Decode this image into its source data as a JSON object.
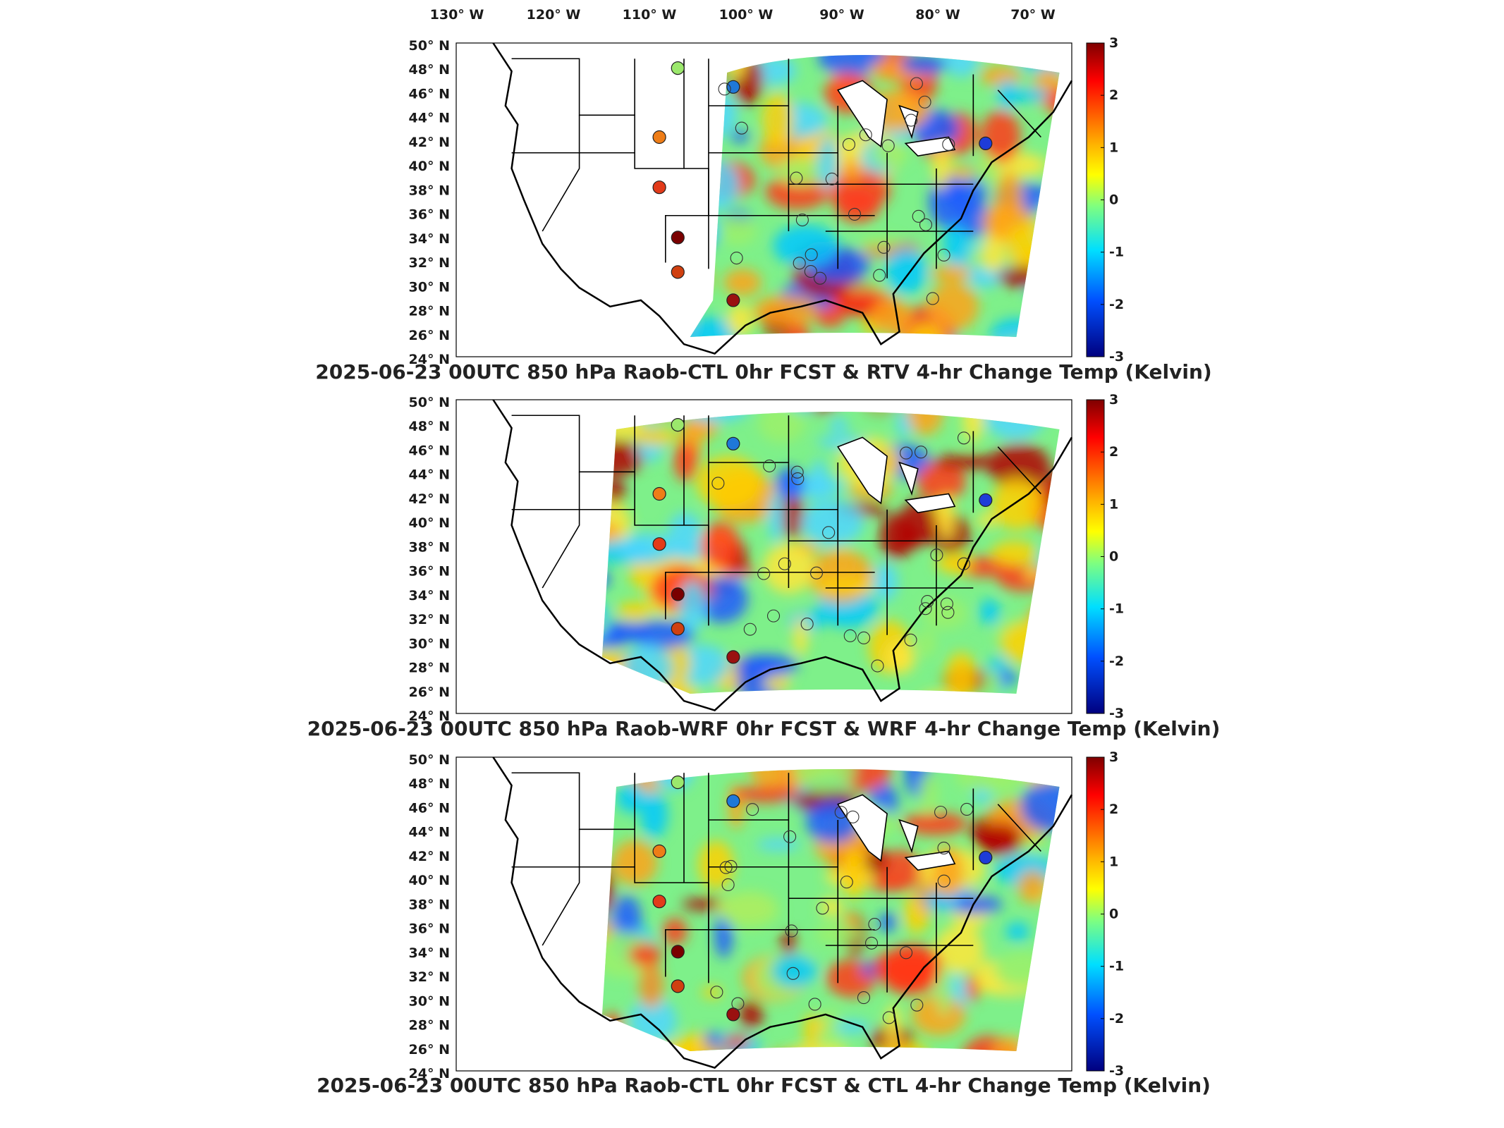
{
  "lon_labels": [
    "130",
    "120",
    "110",
    "100",
    "90",
    "80",
    "70"
  ],
  "lon_suffix": "W",
  "lat_labels": [
    "50",
    "48",
    "46",
    "44",
    "42",
    "40",
    "38",
    "36",
    "34",
    "32",
    "30",
    "28",
    "26",
    "24"
  ],
  "lat_suffix": "N",
  "degree_symbol": "°",
  "colorbar": {
    "ticks": [
      "3",
      "2",
      "1",
      "0",
      "-1",
      "-2",
      "-3"
    ],
    "colors": [
      "#7f0000",
      "#ff0000",
      "#ffff00",
      "#7fff7f",
      "#00bfff",
      "#0000ff",
      "#00007f"
    ]
  },
  "panels": [
    {
      "title": "2025-06-23 00UTC 850 hPa Raob-CTL 0hr FCST & RTV 4-hr Change Temp (Kelvin)",
      "station_colors": [
        "#9be86c",
        "#1f78d8",
        "#ee7d17",
        "#e23b1a",
        "#7a0000",
        "#d04010",
        "#1e3cd8",
        "#9a1010"
      ],
      "field_seed": 1
    },
    {
      "title": "2025-06-23 00UTC 850 hPa Raob-WRF 0hr FCST & WRF 4-hr Change Temp (Kelvin)",
      "station_colors": [
        "#9be86c",
        "#1f78d8",
        "#ee7d17",
        "#e23b1a",
        "#7a0000",
        "#d04010",
        "#1e3cd8",
        "#9a1010"
      ],
      "field_seed": 2
    },
    {
      "title": "2025-06-23 00UTC 850 hPa Raob-CTL 0hr FCST & CTL 4-hr Change Temp (Kelvin)",
      "station_colors": [
        "#9be86c",
        "#1f78d8",
        "#ee7d17",
        "#e23b1a",
        "#7a0000",
        "#d04010",
        "#1e3cd8",
        "#9a1010"
      ],
      "field_seed": 3
    }
  ]
}
